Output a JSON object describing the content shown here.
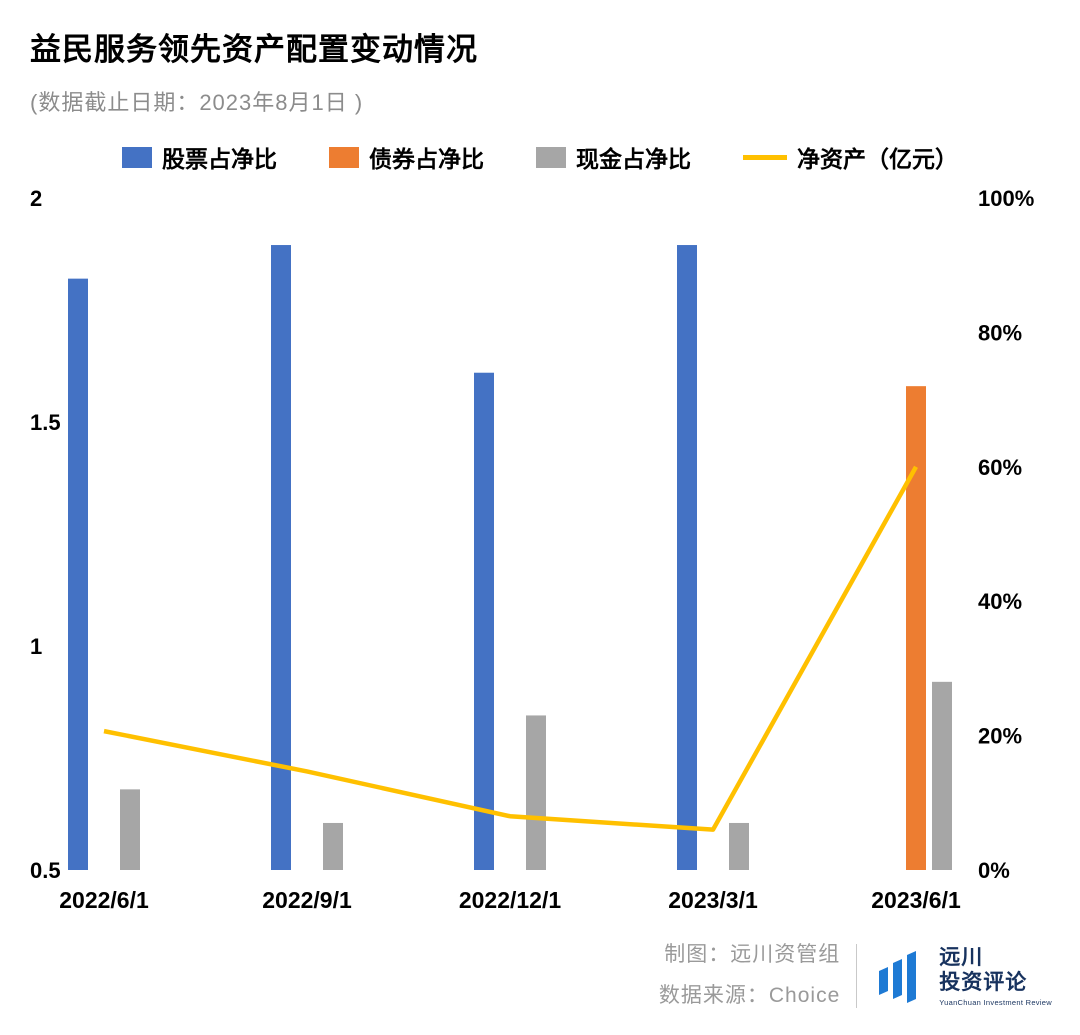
{
  "header": {
    "title": "益民服务领先资产配置变动情况",
    "subtitle": "(数据截止日期：2023年8月1日 )"
  },
  "chart_data": {
    "type": "bar",
    "categories": [
      "2022/6/1",
      "2022/9/1",
      "2022/12/1",
      "2023/3/1",
      "2023/6/1"
    ],
    "bar_series": [
      {
        "name": "股票占净比",
        "color": "#4472C4",
        "axis": "right",
        "unit": "%",
        "values": [
          88,
          93,
          74,
          93,
          0
        ]
      },
      {
        "name": "债券占净比",
        "color": "#ED7D31",
        "axis": "right",
        "unit": "%",
        "values": [
          0,
          0,
          0,
          0,
          72
        ]
      },
      {
        "name": "现金占净比",
        "color": "#A6A6A6",
        "axis": "right",
        "unit": "%",
        "values": [
          12,
          7,
          23,
          7,
          28
        ]
      }
    ],
    "line_series": {
      "name": "净资产（亿元）",
      "color": "#FFC000",
      "axis": "left",
      "values": [
        0.81,
        0.72,
        0.62,
        0.59,
        1.4
      ]
    },
    "left_axis": {
      "min": 0.5,
      "max": 2,
      "ticks": [
        "2",
        "1.5",
        "1",
        "0.5"
      ]
    },
    "right_axis": {
      "min": 0,
      "max": 100,
      "ticks": [
        "100%",
        "80%",
        "60%",
        "40%",
        "20%",
        "0%"
      ]
    },
    "grid": "off",
    "legend_position": "top"
  },
  "footer": {
    "credit": "制图：远川资管组",
    "source": "数据来源：Choice",
    "logo": {
      "icon": "yuanchuan-bars-icon",
      "name_line1": "远川",
      "name_line2": "投资评论",
      "subtitle": "YuanChuan Investment Review",
      "brand_blue": "#1E7AD4",
      "brand_navy": "#17325E"
    }
  }
}
